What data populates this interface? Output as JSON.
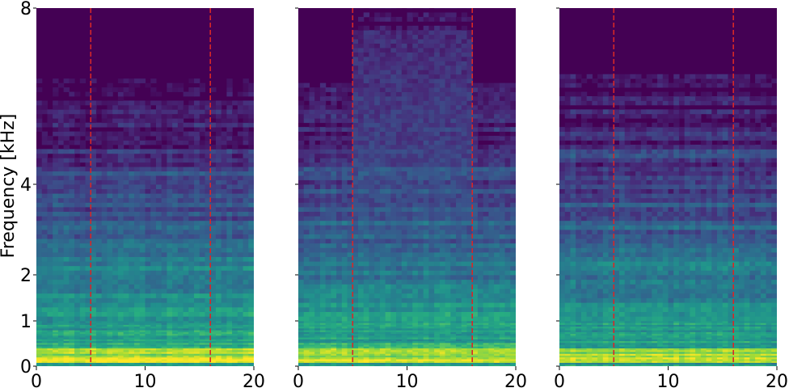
{
  "chart_data": [
    {
      "type": "heatmap",
      "subtype": "spectrogram",
      "colormap": "viridis",
      "ylabel": "Frequency [kHz]",
      "xlim": [
        0,
        20
      ],
      "ylim": [
        0,
        8
      ],
      "yscale": "piecewise (0–1 linear, then log-like: 1, 2, 4, 8)",
      "xticks": [
        "0",
        "10",
        "20"
      ],
      "yticks": [
        "0",
        "1",
        "2",
        "4",
        "8"
      ],
      "vlines": [
        5,
        16
      ],
      "vline_color": "#d62728",
      "vline_style": "dashed",
      "grid": false,
      "description_of_energy": [
        {
          "band_khz": [
            0,
            0.4
          ],
          "level": "very high (yellow-green)"
        },
        {
          "band_khz": [
            0.4,
            2.5
          ],
          "level": "medium (teal-green)"
        },
        {
          "band_khz": [
            2.5,
            5
          ],
          "level": "low (blue-purple)"
        },
        {
          "band_khz": [
            5,
            8
          ],
          "level": "very low (dark purple)"
        }
      ]
    },
    {
      "type": "heatmap",
      "subtype": "spectrogram",
      "colormap": "viridis",
      "xlim": [
        0,
        20
      ],
      "ylim": [
        0,
        8
      ],
      "xticks": [
        "0",
        "10",
        "20"
      ],
      "vlines": [
        5,
        16
      ],
      "vline_color": "#d62728",
      "vline_style": "dashed",
      "note": "broadband energy raised up to ~7.5 kHz between the dashed lines",
      "emphasis_range_x": [
        5,
        16
      ],
      "emphasis_top_khz": 7.5
    },
    {
      "type": "heatmap",
      "subtype": "spectrogram",
      "colormap": "viridis",
      "xlim": [
        0,
        20
      ],
      "ylim": [
        0,
        8
      ],
      "xticks": [
        "0",
        "10",
        "20"
      ],
      "vlines": [
        5,
        16
      ],
      "vline_color": "#d62728",
      "vline_style": "dashed"
    }
  ]
}
